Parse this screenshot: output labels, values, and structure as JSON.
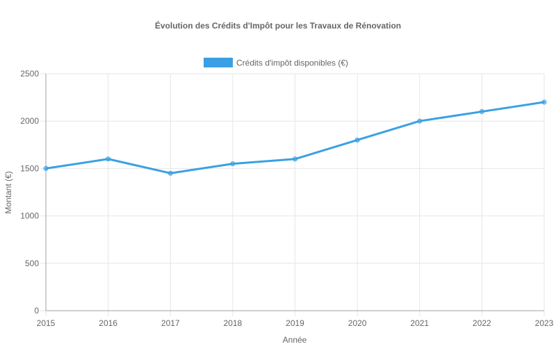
{
  "chart_data": {
    "type": "line",
    "title": "Évolution des Crédits d'Impôt pour les Travaux de Rénovation",
    "xlabel": "Année",
    "ylabel": "Montant (€)",
    "x": [
      "2015",
      "2016",
      "2017",
      "2018",
      "2019",
      "2020",
      "2021",
      "2022",
      "2023"
    ],
    "series": [
      {
        "name": "Crédits d'impôt disponibles (€)",
        "values": [
          1500,
          1600,
          1450,
          1550,
          1600,
          1800,
          2000,
          2100,
          2200
        ],
        "color": "#3aa0e3"
      }
    ],
    "ylim": [
      0,
      2500
    ],
    "yticks": [
      0,
      500,
      1000,
      1500,
      2000,
      2500
    ],
    "grid": true,
    "legend": "top"
  }
}
